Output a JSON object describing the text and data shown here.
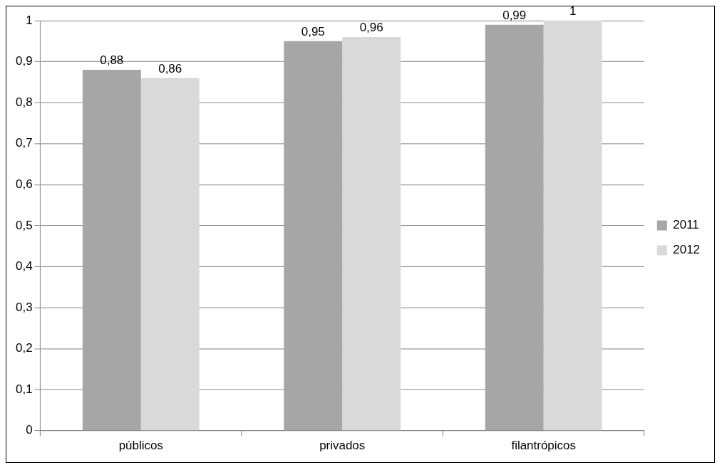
{
  "chart_data": {
    "type": "bar",
    "categories": [
      "públicos",
      "privados",
      "filantrópicos"
    ],
    "series": [
      {
        "name": "2011",
        "color": "#a6a6a6",
        "values": [
          0.88,
          0.95,
          0.99
        ],
        "value_labels": [
          "0,88",
          "0,95",
          "0,99"
        ]
      },
      {
        "name": "2012",
        "color": "#d9d9d9",
        "values": [
          0.86,
          0.96,
          1
        ],
        "value_labels": [
          "0,86",
          "0,96",
          "1"
        ]
      }
    ],
    "ylim": [
      0,
      1
    ],
    "yticks": [
      0,
      {
        "value": 0.1,
        "label": "0,1"
      },
      {
        "value": 0.2,
        "label": "0,2"
      },
      {
        "value": 0.3,
        "label": "0,3"
      },
      {
        "value": 0.4,
        "label": "0,4"
      },
      {
        "value": 0.5,
        "label": "0,5"
      },
      {
        "value": 0.6,
        "label": "0,6"
      },
      {
        "value": 0.7,
        "label": "0,7"
      },
      {
        "value": 0.8,
        "label": "0,8"
      },
      {
        "value": 0.9,
        "label": "0,9"
      },
      1
    ],
    "grid": "y",
    "legend": "right"
  }
}
